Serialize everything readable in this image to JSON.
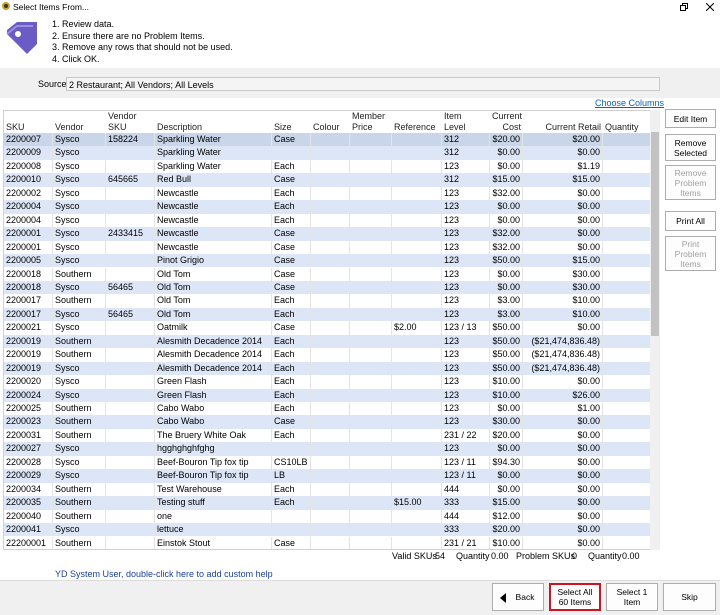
{
  "title_bar": {
    "title": "Select Items From..."
  },
  "instructions": [
    "1. Review data.",
    "2. Ensure there are no Problem Items.",
    "3. Remove any rows that should not be used.",
    "4. Click OK."
  ],
  "source": {
    "label": "Source",
    "value": "2 Restaurant; All Vendors; All Levels"
  },
  "choose_columns": "Choose Columns",
  "table": {
    "columns": [
      [
        "SKU"
      ],
      [
        "Vendor"
      ],
      [
        "Vendor",
        "SKU"
      ],
      [
        "Description"
      ],
      [
        "Size"
      ],
      [
        "Colour"
      ],
      [
        "Member",
        "Price"
      ],
      [
        "Reference"
      ],
      [
        "Item",
        "Level"
      ],
      [
        "Current",
        "Cost"
      ],
      [
        "Current Retail"
      ],
      [
        "Quantity"
      ]
    ],
    "rows": [
      [
        "2200007",
        "Sysco",
        "158224",
        "Sparkling Water",
        "Case",
        null,
        null,
        null,
        "312",
        "$20.00",
        "$20.00",
        null
      ],
      [
        "2200009",
        "Sysco",
        null,
        "Sparkling Water",
        null,
        null,
        null,
        null,
        "312",
        "$0.00",
        "$0.00",
        null
      ],
      [
        "2200008",
        "Sysco",
        null,
        "Sparkling Water",
        "Each",
        null,
        null,
        null,
        "123",
        "$0.00",
        "$1.19",
        null
      ],
      [
        "2200010",
        "Sysco",
        "645665",
        "Red Bull",
        "Case",
        null,
        null,
        null,
        "312",
        "$15.00",
        "$15.00",
        null
      ],
      [
        "2200002",
        "Sysco",
        null,
        "Newcastle",
        "Each",
        null,
        null,
        null,
        "123",
        "$32.00",
        "$0.00",
        null
      ],
      [
        "2200004",
        "Sysco",
        null,
        "Newcastle",
        "Each",
        null,
        null,
        null,
        "123",
        "$0.00",
        "$0.00",
        null
      ],
      [
        "2200004",
        "Sysco",
        null,
        "Newcastle",
        "Each",
        null,
        null,
        null,
        "123",
        "$0.00",
        "$0.00",
        null
      ],
      [
        "2200001",
        "Sysco",
        "2433415",
        "Newcastle",
        "Case",
        null,
        null,
        null,
        "123",
        "$32.00",
        "$0.00",
        null
      ],
      [
        "2200001",
        "Sysco",
        null,
        "Newcastle",
        "Case",
        null,
        null,
        null,
        "123",
        "$32.00",
        "$0.00",
        null
      ],
      [
        "2200005",
        "Sysco",
        null,
        "Pinot Grigio",
        "Case",
        null,
        null,
        null,
        "123",
        "$50.00",
        "$15.00",
        null
      ],
      [
        "2200018",
        "Southern",
        null,
        "Old Tom",
        "Case",
        null,
        null,
        null,
        "123",
        "$0.00",
        "$30.00",
        null
      ],
      [
        "2200018",
        "Sysco",
        "56465",
        "Old Tom",
        "Case",
        null,
        null,
        null,
        "123",
        "$0.00",
        "$30.00",
        null
      ],
      [
        "2200017",
        "Southern",
        null,
        "Old Tom",
        "Each",
        null,
        null,
        null,
        "123",
        "$3.00",
        "$10.00",
        null
      ],
      [
        "2200017",
        "Sysco",
        "56465",
        "Old Tom",
        "Each",
        null,
        null,
        null,
        "123",
        "$3.00",
        "$10.00",
        null
      ],
      [
        "2200021",
        "Sysco",
        null,
        "Oatmilk",
        "Case",
        null,
        null,
        "$2.00",
        "123 / 13",
        "$50.00",
        "$0.00",
        null
      ],
      [
        "2200019",
        "Southern",
        null,
        "Alesmith Decadence 2014",
        "Each",
        null,
        null,
        null,
        "123",
        "$50.00",
        "($21,474,836.48)",
        null
      ],
      [
        "2200019",
        "Southern",
        null,
        "Alesmith Decadence 2014",
        "Each",
        null,
        null,
        null,
        "123",
        "$50.00",
        "($21,474,836.48)",
        null
      ],
      [
        "2200019",
        "Sysco",
        null,
        "Alesmith Decadence 2014",
        "Each",
        null,
        null,
        null,
        "123",
        "$50.00",
        "($21,474,836.48)",
        null
      ],
      [
        "2200020",
        "Sysco",
        null,
        "Green Flash",
        "Each",
        null,
        null,
        null,
        "123",
        "$10.00",
        "$0.00",
        null
      ],
      [
        "2200024",
        "Sysco",
        null,
        "Green Flash",
        "Each",
        null,
        null,
        null,
        "123",
        "$10.00",
        "$26.00",
        null
      ],
      [
        "2200025",
        "Southern",
        null,
        "Cabo Wabo",
        "Each",
        null,
        null,
        null,
        "123",
        "$0.00",
        "$1.00",
        null
      ],
      [
        "2200023",
        "Southern",
        null,
        "Cabo Wabo",
        "Case",
        null,
        null,
        null,
        "123",
        "$30.00",
        "$0.00",
        null
      ],
      [
        "2200031",
        "Southern",
        null,
        "The Bruery White Oak",
        "Each",
        null,
        null,
        null,
        "231 / 22",
        "$20.00",
        "$0.00",
        null
      ],
      [
        "2200027",
        "Sysco",
        null,
        "hgghghghfghg",
        null,
        null,
        null,
        null,
        "123",
        "$0.00",
        "$0.00",
        null
      ],
      [
        "2200028",
        "Sysco",
        null,
        "Beef-Bouron Tip fox tip",
        "CS10LB",
        null,
        null,
        null,
        "123 / 11",
        "$94.30",
        "$0.00",
        null
      ],
      [
        "2200029",
        "Sysco",
        null,
        "Beef-Bouron Tip fox tip",
        "LB",
        null,
        null,
        null,
        "123 / 11",
        "$0.00",
        "$0.00",
        null
      ],
      [
        "2200034",
        "Southern",
        null,
        "Test Warehouse",
        "Each",
        null,
        null,
        null,
        "444",
        "$0.00",
        "$0.00",
        null
      ],
      [
        "2200035",
        "Southern",
        null,
        "Testing stuff",
        "Each",
        null,
        null,
        "$15.00",
        "333",
        "$15.00",
        "$0.00",
        null
      ],
      [
        "2200040",
        "Southern",
        null,
        "one",
        null,
        null,
        null,
        null,
        "444",
        "$12.00",
        "$0.00",
        null
      ],
      [
        "2200041",
        "Sysco",
        null,
        "lettuce",
        null,
        null,
        null,
        null,
        "333",
        "$20.00",
        "$0.00",
        null
      ],
      [
        "22200001",
        "Southern",
        null,
        "Einstok Stout",
        "Case",
        null,
        null,
        null,
        "231 / 21",
        "$10.00",
        "$0.00",
        null
      ]
    ]
  },
  "summary": [
    {
      "label": "Valid SKUs",
      "value": "54"
    },
    {
      "label": "Quantity",
      "value": "0.00"
    },
    {
      "label": "Problem SKUs",
      "value": "0"
    },
    {
      "label": "Quantity",
      "value": "0.00"
    }
  ],
  "side_buttons": [
    [
      "Edit Item"
    ],
    [
      "Remove",
      "Selected"
    ],
    [
      "Remove",
      "Problem",
      "Items"
    ],
    [
      "Print All"
    ],
    [
      "Print",
      "Problem",
      "Items"
    ]
  ],
  "help_text": "YD System User, double-click here to add custom help",
  "bottom_buttons": [
    [
      "Back"
    ],
    [
      "Select All",
      "60 Items"
    ],
    [
      "Select 1",
      "Item"
    ],
    [
      "Skip"
    ]
  ]
}
